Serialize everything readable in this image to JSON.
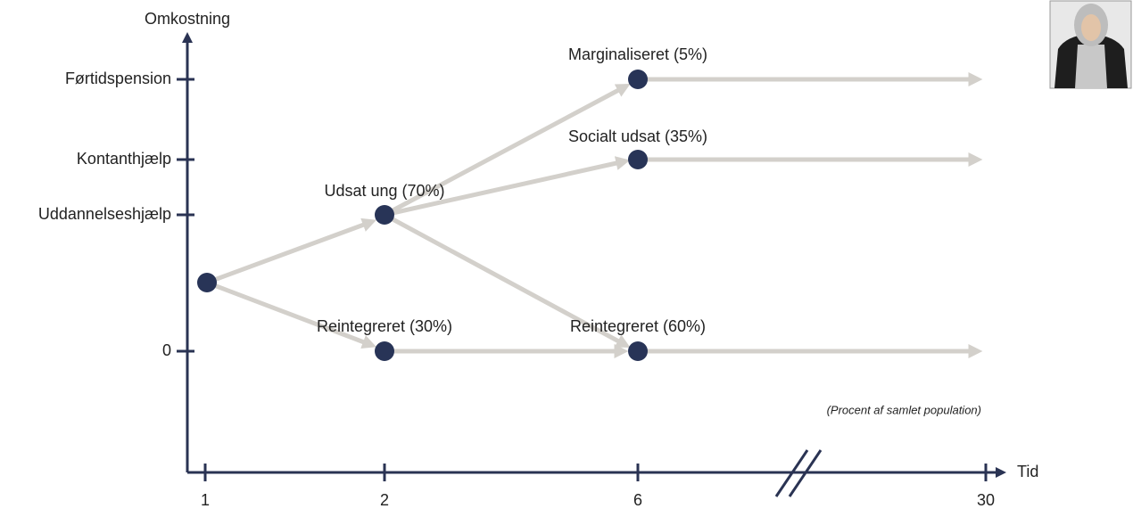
{
  "axes": {
    "y_label": "Omkostning",
    "x_label": "Tid",
    "y_ticks": [
      "Førtidspension",
      "Kontanthjælp",
      "Uddannelseshjælp",
      "0"
    ],
    "x_ticks": [
      "1",
      "2",
      "6",
      "30"
    ]
  },
  "nodes": [
    {
      "label": "Udsat ung (70%)"
    },
    {
      "label": "Reintegreret (30%)"
    },
    {
      "label": "Marginaliseret (5%)"
    },
    {
      "label": "Socialt udsat (35%)"
    },
    {
      "label": "Reintegreret (60%)"
    }
  ],
  "note": "(Procent af samlet population)"
}
